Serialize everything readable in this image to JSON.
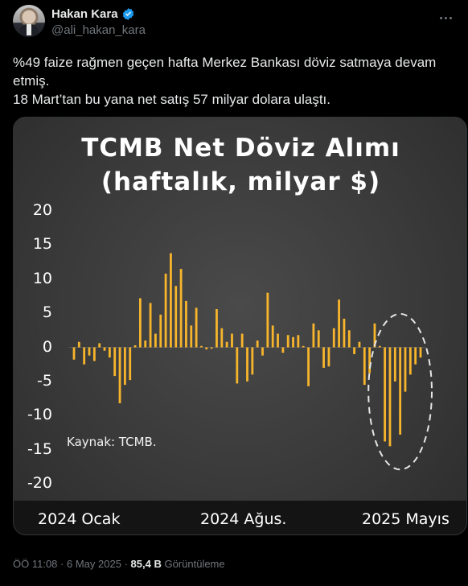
{
  "author": {
    "display_name": "Hakan Kara",
    "handle": "@ali_hakan_kara",
    "avatar_icon": "profile-photo",
    "verified_icon": "verified-badge-icon"
  },
  "tweet": {
    "line1": "%49 faize rağmen geçen hafta Merkez Bankası döviz satmaya devam etmiş.",
    "line2": "18 Mart’tan bu yana net satış 57 milyar dolara ulaştı."
  },
  "meta": {
    "time": "ÖÖ 11:08",
    "sep1": "·",
    "date": "6 May 2025",
    "sep2": "·",
    "views": "85,4 B",
    "views_label": "Görüntüleme"
  },
  "colors": {
    "bar": "#f7b52c",
    "highlight_circle": "#e6e6e6"
  },
  "chart_data": {
    "type": "bar",
    "title": "TCMB Net Döviz Alımı",
    "subtitle": "(haftalık, milyar $)",
    "source": "Kaynak: TCMB.",
    "ylim": [
      -20,
      20
    ],
    "yticks": [
      "20",
      "15",
      "10",
      "5",
      "0",
      "-5",
      "-10",
      "-15",
      "-20"
    ],
    "x_category_labels": [
      "2024 Ocak",
      "2024 Ağus.",
      "2025 Mayıs"
    ],
    "grid": false,
    "legend": "none",
    "highlight": "last 9 weeks circled",
    "values": [
      -1.8,
      0.8,
      -2.5,
      -1.2,
      -2.0,
      0.6,
      -0.5,
      -1.5,
      -4.2,
      -8.2,
      -5.5,
      -4.8,
      0.3,
      7.2,
      1.0,
      6.5,
      2.0,
      4.8,
      10.8,
      13.8,
      9.0,
      11.5,
      6.8,
      3.2,
      5.8,
      0.2,
      -0.3,
      -0.2,
      5.6,
      2.8,
      0.8,
      2.0,
      -5.3,
      2.0,
      -5.0,
      -4.0,
      1.0,
      -1.2,
      8.0,
      3.2,
      2.0,
      -0.8,
      1.8,
      1.5,
      1.8,
      0.2,
      -5.7,
      3.5,
      2.5,
      -3.0,
      -2.8,
      2.8,
      7.0,
      4.2,
      2.5,
      -1.0,
      0.8,
      -5.5,
      -3.8,
      3.5,
      0.2,
      -13.8,
      -14.5,
      -5.0,
      -12.8,
      -6.5,
      -4.0,
      -2.5,
      -1.5
    ]
  }
}
